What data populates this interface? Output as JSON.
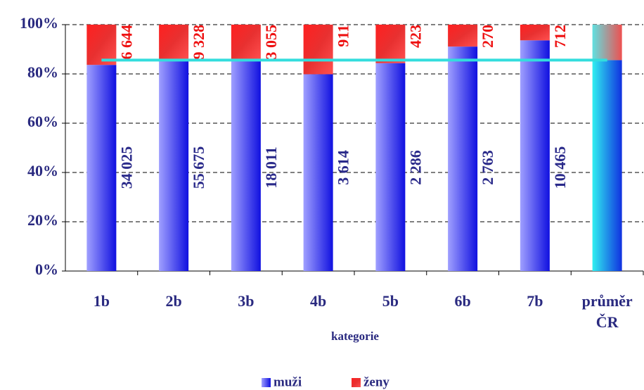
{
  "chart_data": {
    "type": "bar",
    "stacked": "percent",
    "categories": [
      "1b",
      "2b",
      "3b",
      "4b",
      "5b",
      "6b",
      "7b",
      "průměr ČR"
    ],
    "x_label": "kategorie",
    "series": [
      {
        "name": "muži",
        "color": "#3333ee",
        "label_color": "#2a2a8a",
        "values": [
          34025,
          55675,
          18011,
          3614,
          2286,
          2763,
          10465,
          126839
        ],
        "value_labels": [
          "34 025",
          "55 675",
          "18 011",
          "3 614",
          "2 286",
          "2 763",
          "10 465",
          null
        ]
      },
      {
        "name": "ženy",
        "color": "#ee1111",
        "label_color": "#ee1111",
        "values": [
          6644,
          9328,
          3055,
          911,
          423,
          270,
          712,
          21343
        ],
        "value_labels": [
          "6 644",
          "9 328",
          "3 055",
          "911",
          "423",
          "270",
          "712",
          null
        ]
      }
    ],
    "highlight_last": true,
    "highlight_colors": [
      "#22e0ea",
      "#e86a6a"
    ],
    "average_line_color": "#33dddd",
    "ylim": [
      0,
      100
    ],
    "yticks": [
      {
        "value": 0,
        "label": "0%"
      },
      {
        "value": 20,
        "label": "20%"
      },
      {
        "value": 40,
        "label": "40%"
      },
      {
        "value": 60,
        "label": "60%"
      },
      {
        "value": 80,
        "label": "80%"
      },
      {
        "value": 100,
        "label": "100%"
      }
    ],
    "grid": true,
    "legend": "bottom"
  }
}
